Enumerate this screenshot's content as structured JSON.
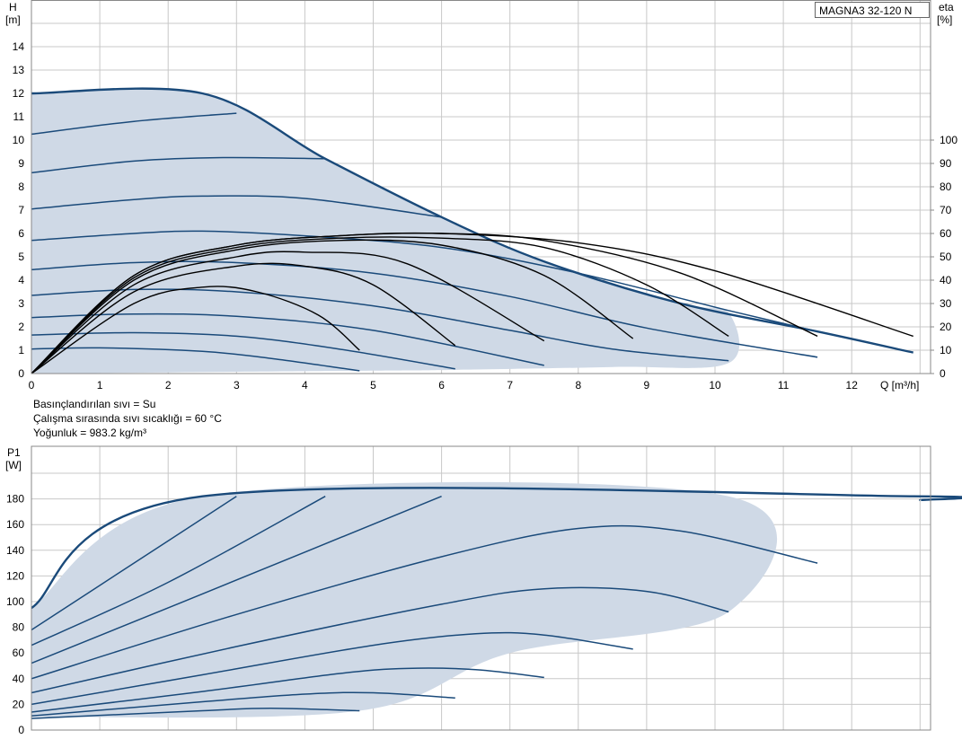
{
  "model": "MAGNA3 32-120 N",
  "info": [
    "Basınçlandırılan sıvı = Su",
    "Çalışma sırasında sıvı sıcaklığı = 60 °C",
    "Yoğunluk = 983.2 kg/m³"
  ],
  "colors": {
    "envelope": "#cfd9e6",
    "curve": "#1a4a7a",
    "eta": "#000000",
    "grid": "#c8c8c8"
  },
  "chart_data": [
    {
      "type": "line",
      "title": "",
      "xlabel": "Q [m³/h]",
      "ylabel_top": "H",
      "ylabel_bottom": "[m]",
      "y2label_top": "eta",
      "y2label_bottom": "[%]",
      "xlim": [
        0,
        13
      ],
      "ylim": [
        0,
        15
      ],
      "y2lim": [
        0,
        150
      ],
      "x_ticks": [
        "0",
        "1",
        "2",
        "3",
        "4",
        "5",
        "6",
        "7",
        "8",
        "9",
        "10",
        "11",
        "12"
      ],
      "y_ticks": [
        "0",
        "1",
        "2",
        "3",
        "4",
        "5",
        "6",
        "7",
        "8",
        "9",
        "10",
        "11",
        "12",
        "13",
        "14"
      ],
      "y2_ticks": [
        "0",
        "10",
        "20",
        "30",
        "40",
        "50",
        "60",
        "70",
        "80",
        "90",
        "100"
      ],
      "grid": true,
      "envelope": [
        [
          0,
          12
        ],
        [
          2.5,
          12
        ],
        [
          4.3,
          9.2
        ],
        [
          6.0,
          6.7
        ],
        [
          7.5,
          4.8
        ],
        [
          9.5,
          3.0
        ],
        [
          10.2,
          2.6
        ],
        [
          10.2,
          0.45
        ],
        [
          8.5,
          0.28
        ],
        [
          6.0,
          0.15
        ],
        [
          4.8,
          0.12
        ],
        [
          0,
          0
        ]
      ],
      "series": [
        {
          "values": [
            [
              0,
              12
            ],
            [
              2.5,
              12
            ],
            [
              4.3,
              9.2
            ],
            [
              6.0,
              6.7
            ],
            [
              7.5,
              4.8
            ],
            [
              9.5,
              3.0
            ],
            [
              11.5,
              1.8
            ],
            [
              12.9,
              0.9
            ]
          ]
        },
        {
          "values": [
            [
              0,
              10.25
            ],
            [
              1.5,
              10.8
            ],
            [
              3.0,
              11.15
            ]
          ]
        },
        {
          "values": [
            [
              0,
              8.6
            ],
            [
              1.5,
              9.1
            ],
            [
              2.8,
              9.25
            ],
            [
              4.3,
              9.2
            ]
          ]
        },
        {
          "values": [
            [
              0,
              7.05
            ],
            [
              1.5,
              7.45
            ],
            [
              2.5,
              7.6
            ],
            [
              4.0,
              7.5
            ],
            [
              6.0,
              6.7
            ]
          ]
        },
        {
          "values": [
            [
              0,
              5.7
            ],
            [
              1.5,
              6.0
            ],
            [
              2.5,
              6.1
            ],
            [
              4.0,
              5.9
            ],
            [
              6.0,
              5.4
            ],
            [
              8.0,
              4.3
            ],
            [
              10.2,
              2.7
            ],
            [
              11.5,
              1.8
            ]
          ]
        },
        {
          "values": [
            [
              0,
              4.45
            ],
            [
              1.5,
              4.75
            ],
            [
              3.0,
              4.75
            ],
            [
              5.0,
              4.3
            ],
            [
              7.0,
              3.3
            ],
            [
              9.0,
              1.95
            ],
            [
              11.5,
              0.7
            ]
          ]
        },
        {
          "values": [
            [
              0,
              3.35
            ],
            [
              1.5,
              3.6
            ],
            [
              3.0,
              3.5
            ],
            [
              5.0,
              2.9
            ],
            [
              7.0,
              1.85
            ],
            [
              8.5,
              1.05
            ],
            [
              10.2,
              0.55
            ]
          ]
        },
        {
          "values": [
            [
              0,
              2.4
            ],
            [
              1.5,
              2.55
            ],
            [
              3.0,
              2.45
            ],
            [
              5.0,
              1.85
            ],
            [
              7.5,
              0.35
            ]
          ]
        },
        {
          "values": [
            [
              0,
              1.65
            ],
            [
              1.5,
              1.75
            ],
            [
              3.0,
              1.6
            ],
            [
              4.5,
              1.05
            ],
            [
              6.2,
              0.2
            ]
          ]
        },
        {
          "values": [
            [
              0,
              1.05
            ],
            [
              1.0,
              1.1
            ],
            [
              2.5,
              0.95
            ],
            [
              3.5,
              0.65
            ],
            [
              4.8,
              0.12
            ]
          ]
        }
      ],
      "eta_series": [
        {
          "values": [
            [
              0,
              0
            ],
            [
              1.5,
              30
            ],
            [
              2.5,
              37
            ],
            [
              3.3,
              35
            ],
            [
              4.2,
              25
            ],
            [
              4.8,
              10
            ]
          ]
        },
        {
          "values": [
            [
              0,
              0
            ],
            [
              1.5,
              35
            ],
            [
              3.0,
              46
            ],
            [
              4.0,
              46
            ],
            [
              5.0,
              38
            ],
            [
              6.2,
              12
            ]
          ]
        },
        {
          "values": [
            [
              0,
              0
            ],
            [
              1.5,
              38
            ],
            [
              3.0,
              50
            ],
            [
              4.0,
              52
            ],
            [
              5.5,
              47
            ],
            [
              7.5,
              14
            ]
          ]
        },
        {
          "values": [
            [
              0,
              0
            ],
            [
              1.5,
              40
            ],
            [
              3.0,
              53
            ],
            [
              4.5,
              57
            ],
            [
              6.0,
              55
            ],
            [
              7.5,
              42
            ],
            [
              8.8,
              15
            ]
          ]
        },
        {
          "values": [
            [
              0,
              0
            ],
            [
              1.5,
              41
            ],
            [
              3.0,
              54
            ],
            [
              4.5,
              58
            ],
            [
              6.0,
              58
            ],
            [
              7.5,
              54
            ],
            [
              9.0,
              38
            ],
            [
              10.2,
              16
            ]
          ]
        },
        {
          "values": [
            [
              0,
              0
            ],
            [
              1.5,
              42
            ],
            [
              3.0,
              55
            ],
            [
              4.5,
              59
            ],
            [
              6.0,
              60
            ],
            [
              7.5,
              57
            ],
            [
              9.5,
              43
            ],
            [
              11.5,
              16
            ]
          ]
        },
        {
          "values": [
            [
              0,
              0
            ],
            [
              1.5,
              42
            ],
            [
              3.0,
              55
            ],
            [
              4.5,
              59
            ],
            [
              6.0,
              60
            ],
            [
              8.0,
              56
            ],
            [
              10.0,
              44
            ],
            [
              12.9,
              16
            ]
          ]
        }
      ]
    },
    {
      "type": "line",
      "title": "",
      "ylabel_top": "P1",
      "ylabel_bottom": "[W]",
      "xlim": [
        0,
        13
      ],
      "ylim": [
        0,
        200
      ],
      "y_ticks": [
        "0",
        "20",
        "40",
        "60",
        "80",
        "100",
        "120",
        "140",
        "160",
        "180"
      ],
      "grid": true,
      "envelope": [
        [
          0,
          95
        ],
        [
          2.5,
          182
        ],
        [
          10.2,
          182
        ],
        [
          10.2,
          92
        ],
        [
          7.0,
          60
        ],
        [
          4.8,
          15
        ],
        [
          0,
          10
        ]
      ],
      "series": [
        {
          "values": [
            [
              0,
              95
            ],
            [
              2.5,
              182
            ],
            [
              12.9,
              182
            ],
            [
              13.0,
              179
            ]
          ]
        },
        {
          "values": [
            [
              0,
              78
            ],
            [
              1.5,
              130
            ],
            [
              3.0,
              182
            ]
          ]
        },
        {
          "values": [
            [
              0,
              66
            ],
            [
              2.0,
              115
            ],
            [
              4.3,
              182
            ]
          ]
        },
        {
          "values": [
            [
              0,
              52
            ],
            [
              2.5,
              106
            ],
            [
              6.0,
              182
            ]
          ]
        },
        {
          "values": [
            [
              0,
              40
            ],
            [
              3.0,
              90
            ],
            [
              6.0,
              135
            ],
            [
              8.0,
              157
            ],
            [
              9.5,
              155
            ],
            [
              11.5,
              130
            ]
          ]
        },
        {
          "values": [
            [
              0,
              29
            ],
            [
              3.0,
              65
            ],
            [
              6.0,
              98
            ],
            [
              7.5,
              110
            ],
            [
              9.0,
              108
            ],
            [
              10.2,
              92
            ]
          ]
        },
        {
          "values": [
            [
              0,
              20
            ],
            [
              2.5,
              43
            ],
            [
              5.0,
              66
            ],
            [
              6.5,
              75
            ],
            [
              7.5,
              74
            ],
            [
              8.8,
              63
            ]
          ]
        },
        {
          "values": [
            [
              0,
              14
            ],
            [
              2.5,
              30
            ],
            [
              4.5,
              44
            ],
            [
              5.5,
              48
            ],
            [
              6.5,
              47
            ],
            [
              7.5,
              41
            ]
          ]
        },
        {
          "values": [
            [
              0,
              11
            ],
            [
              2.5,
              22
            ],
            [
              4.0,
              28
            ],
            [
              5.0,
              29
            ],
            [
              6.2,
              25
            ]
          ]
        },
        {
          "values": [
            [
              0,
              9
            ],
            [
              2.5,
              15
            ],
            [
              3.5,
              17
            ],
            [
              4.8,
              15
            ]
          ]
        }
      ]
    }
  ]
}
